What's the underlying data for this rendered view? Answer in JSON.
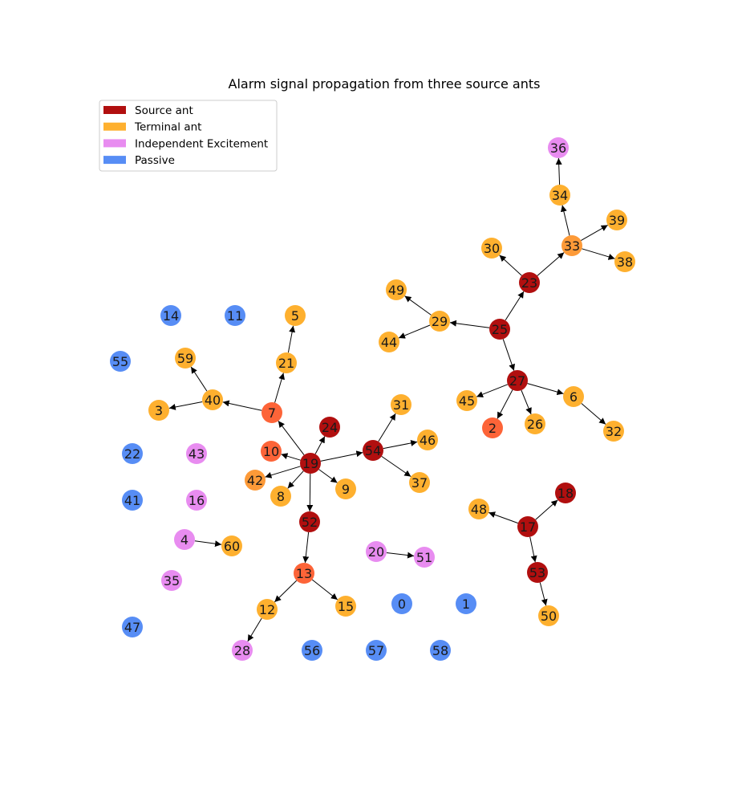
{
  "title": "Alarm signal propagation from three source ants",
  "colors": {
    "source": "#b10f0f",
    "relay": "#fd6438",
    "intermediate": "#fd9a38",
    "terminal": "#feb02f",
    "independent": "#e88cf0",
    "passive": "#578df5"
  },
  "legend": [
    {
      "label": "Source ant",
      "category": "source"
    },
    {
      "label": "Terminal ant",
      "category": "terminal"
    },
    {
      "label": "Independent Excitement",
      "category": "independent"
    },
    {
      "label": "Passive",
      "category": "passive"
    }
  ],
  "nodes": [
    {
      "id": "0",
      "category": "passive"
    },
    {
      "id": "1",
      "category": "passive"
    },
    {
      "id": "2",
      "category": "relay"
    },
    {
      "id": "3",
      "category": "terminal"
    },
    {
      "id": "4",
      "category": "independent"
    },
    {
      "id": "5",
      "category": "terminal"
    },
    {
      "id": "6",
      "category": "terminal"
    },
    {
      "id": "7",
      "category": "relay"
    },
    {
      "id": "8",
      "category": "terminal"
    },
    {
      "id": "9",
      "category": "terminal"
    },
    {
      "id": "10",
      "category": "relay"
    },
    {
      "id": "11",
      "category": "passive"
    },
    {
      "id": "12",
      "category": "terminal"
    },
    {
      "id": "13",
      "category": "relay"
    },
    {
      "id": "14",
      "category": "passive"
    },
    {
      "id": "15",
      "category": "terminal"
    },
    {
      "id": "16",
      "category": "independent"
    },
    {
      "id": "17",
      "category": "source"
    },
    {
      "id": "18",
      "category": "source"
    },
    {
      "id": "19",
      "category": "source"
    },
    {
      "id": "20",
      "category": "independent"
    },
    {
      "id": "21",
      "category": "terminal"
    },
    {
      "id": "22",
      "category": "passive"
    },
    {
      "id": "23",
      "category": "source"
    },
    {
      "id": "24",
      "category": "source"
    },
    {
      "id": "25",
      "category": "source"
    },
    {
      "id": "26",
      "category": "terminal"
    },
    {
      "id": "27",
      "category": "source"
    },
    {
      "id": "28",
      "category": "independent"
    },
    {
      "id": "29",
      "category": "terminal"
    },
    {
      "id": "30",
      "category": "terminal"
    },
    {
      "id": "31",
      "category": "terminal"
    },
    {
      "id": "32",
      "category": "terminal"
    },
    {
      "id": "33",
      "category": "intermediate"
    },
    {
      "id": "34",
      "category": "terminal"
    },
    {
      "id": "35",
      "category": "independent"
    },
    {
      "id": "36",
      "category": "independent"
    },
    {
      "id": "37",
      "category": "terminal"
    },
    {
      "id": "38",
      "category": "terminal"
    },
    {
      "id": "39",
      "category": "terminal"
    },
    {
      "id": "40",
      "category": "terminal"
    },
    {
      "id": "41",
      "category": "passive"
    },
    {
      "id": "42",
      "category": "intermediate"
    },
    {
      "id": "43",
      "category": "independent"
    },
    {
      "id": "44",
      "category": "terminal"
    },
    {
      "id": "45",
      "category": "terminal"
    },
    {
      "id": "46",
      "category": "terminal"
    },
    {
      "id": "47",
      "category": "passive"
    },
    {
      "id": "48",
      "category": "terminal"
    },
    {
      "id": "49",
      "category": "terminal"
    },
    {
      "id": "50",
      "category": "terminal"
    },
    {
      "id": "51",
      "category": "independent"
    },
    {
      "id": "52",
      "category": "source"
    },
    {
      "id": "53",
      "category": "source"
    },
    {
      "id": "54",
      "category": "source"
    },
    {
      "id": "55",
      "category": "passive"
    },
    {
      "id": "56",
      "category": "passive"
    },
    {
      "id": "57",
      "category": "passive"
    },
    {
      "id": "58",
      "category": "passive"
    },
    {
      "id": "59",
      "category": "terminal"
    },
    {
      "id": "60",
      "category": "terminal"
    }
  ],
  "edges": [
    [
      "19",
      "24"
    ],
    [
      "19",
      "10"
    ],
    [
      "19",
      "7"
    ],
    [
      "19",
      "42"
    ],
    [
      "19",
      "8"
    ],
    [
      "19",
      "9"
    ],
    [
      "19",
      "52"
    ],
    [
      "19",
      "54"
    ],
    [
      "7",
      "40"
    ],
    [
      "7",
      "21"
    ],
    [
      "21",
      "5"
    ],
    [
      "40",
      "59"
    ],
    [
      "40",
      "3"
    ],
    [
      "54",
      "31"
    ],
    [
      "54",
      "46"
    ],
    [
      "54",
      "37"
    ],
    [
      "52",
      "13"
    ],
    [
      "13",
      "12"
    ],
    [
      "13",
      "15"
    ],
    [
      "12",
      "28"
    ],
    [
      "4",
      "60"
    ],
    [
      "20",
      "51"
    ],
    [
      "25",
      "29"
    ],
    [
      "25",
      "23"
    ],
    [
      "25",
      "27"
    ],
    [
      "29",
      "49"
    ],
    [
      "29",
      "44"
    ],
    [
      "23",
      "30"
    ],
    [
      "23",
      "33"
    ],
    [
      "33",
      "34"
    ],
    [
      "33",
      "39"
    ],
    [
      "33",
      "38"
    ],
    [
      "34",
      "36"
    ],
    [
      "27",
      "45"
    ],
    [
      "27",
      "2"
    ],
    [
      "27",
      "26"
    ],
    [
      "27",
      "6"
    ],
    [
      "6",
      "32"
    ],
    [
      "17",
      "48"
    ],
    [
      "17",
      "18"
    ],
    [
      "17",
      "53"
    ],
    [
      "53",
      "50"
    ]
  ]
}
